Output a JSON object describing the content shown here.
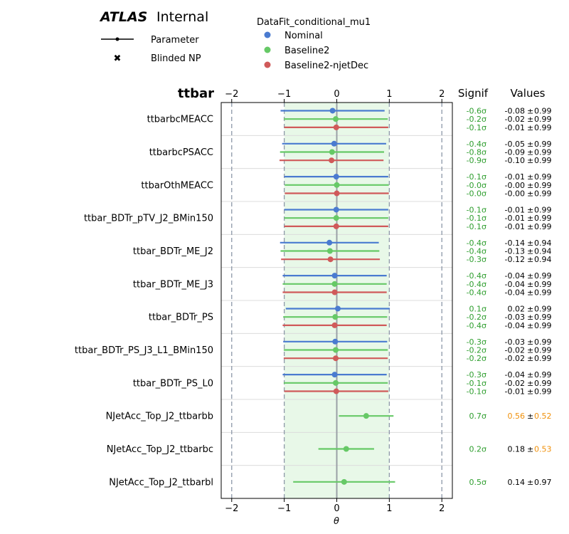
{
  "header": {
    "experiment": "ATLAS",
    "status": "Internal",
    "legend_title": "DataFit_conditional_mu1",
    "key_parameter": "Parameter",
    "key_blinded": "Blinded NP",
    "panel_title": "ttbar",
    "signif_header": "Signif",
    "values_header": "Values"
  },
  "colors": {
    "Nominal": "#4a7bd0",
    "Baseline2": "#66c966",
    "Baseline2-njetDec": "#d05a5a",
    "band": "#e8f8e8",
    "signif_text": "#2e9e2e",
    "highlight": "#f0900a"
  },
  "chart_data": {
    "type": "scatter",
    "subtype": "pull-plot",
    "xlabel": "θ",
    "xlim": [
      -2.2,
      2.2
    ],
    "x_ticks": [
      -2,
      -1,
      0,
      1,
      2
    ],
    "x_tick_labels": [
      "−2",
      "−1",
      "0",
      "1",
      "2"
    ],
    "band": [
      -1,
      1
    ],
    "legend_position": "top",
    "series": [
      {
        "name": "Nominal"
      },
      {
        "name": "Baseline2"
      },
      {
        "name": "Baseline2-njetDec"
      }
    ],
    "parameters": [
      {
        "name": "ttbarbcMEACC",
        "entries": [
          {
            "series": "Nominal",
            "value": -0.08,
            "err": 0.99,
            "signif": "-0.6σ",
            "value_text": "-0.08",
            "err_text": "0.99"
          },
          {
            "series": "Baseline2",
            "value": -0.02,
            "err": 0.99,
            "signif": "-0.2σ",
            "value_text": "-0.02",
            "err_text": "0.99"
          },
          {
            "series": "Baseline2-njetDec",
            "value": -0.01,
            "err": 0.99,
            "signif": "-0.1σ",
            "value_text": "-0.01",
            "err_text": "0.99"
          }
        ]
      },
      {
        "name": "ttbarbcPSACC",
        "entries": [
          {
            "series": "Nominal",
            "value": -0.05,
            "err": 0.99,
            "signif": "-0.4σ",
            "value_text": "-0.05",
            "err_text": "0.99"
          },
          {
            "series": "Baseline2",
            "value": -0.09,
            "err": 0.99,
            "signif": "-0.8σ",
            "value_text": "-0.09",
            "err_text": "0.99"
          },
          {
            "series": "Baseline2-njetDec",
            "value": -0.1,
            "err": 0.99,
            "signif": "-0.9σ",
            "value_text": "-0.10",
            "err_text": "0.99"
          }
        ]
      },
      {
        "name": "ttbarOthMEACC",
        "entries": [
          {
            "series": "Nominal",
            "value": -0.01,
            "err": 0.99,
            "signif": "-0.1σ",
            "value_text": "-0.01",
            "err_text": "0.99"
          },
          {
            "series": "Baseline2",
            "value": -0.0,
            "err": 0.99,
            "signif": "-0.0σ",
            "value_text": "-0.00",
            "err_text": "0.99"
          },
          {
            "series": "Baseline2-njetDec",
            "value": -0.0,
            "err": 0.99,
            "signif": "-0.0σ",
            "value_text": "-0.00",
            "err_text": "0.99"
          }
        ]
      },
      {
        "name": "ttbar_BDTr_pTV_J2_BMin150",
        "entries": [
          {
            "series": "Nominal",
            "value": -0.01,
            "err": 0.99,
            "signif": "-0.1σ",
            "value_text": "-0.01",
            "err_text": "0.99"
          },
          {
            "series": "Baseline2",
            "value": -0.01,
            "err": 0.99,
            "signif": "-0.1σ",
            "value_text": "-0.01",
            "err_text": "0.99"
          },
          {
            "series": "Baseline2-njetDec",
            "value": -0.01,
            "err": 0.99,
            "signif": "-0.1σ",
            "value_text": "-0.01",
            "err_text": "0.99"
          }
        ]
      },
      {
        "name": "ttbar_BDTr_ME_J2",
        "entries": [
          {
            "series": "Nominal",
            "value": -0.14,
            "err": 0.94,
            "signif": "-0.4σ",
            "value_text": "-0.14",
            "err_text": "0.94"
          },
          {
            "series": "Baseline2",
            "value": -0.13,
            "err": 0.94,
            "signif": "-0.4σ",
            "value_text": "-0.13",
            "err_text": "0.94"
          },
          {
            "series": "Baseline2-njetDec",
            "value": -0.12,
            "err": 0.94,
            "signif": "-0.3σ",
            "value_text": "-0.12",
            "err_text": "0.94"
          }
        ]
      },
      {
        "name": "ttbar_BDTr_ME_J3",
        "entries": [
          {
            "series": "Nominal",
            "value": -0.04,
            "err": 0.99,
            "signif": "-0.4σ",
            "value_text": "-0.04",
            "err_text": "0.99"
          },
          {
            "series": "Baseline2",
            "value": -0.04,
            "err": 0.99,
            "signif": "-0.4σ",
            "value_text": "-0.04",
            "err_text": "0.99"
          },
          {
            "series": "Baseline2-njetDec",
            "value": -0.04,
            "err": 0.99,
            "signif": "-0.4σ",
            "value_text": "-0.04",
            "err_text": "0.99"
          }
        ]
      },
      {
        "name": "ttbar_BDTr_PS",
        "entries": [
          {
            "series": "Nominal",
            "value": 0.02,
            "err": 0.99,
            "signif": "0.1σ",
            "value_text": "0.02",
            "err_text": "0.99"
          },
          {
            "series": "Baseline2",
            "value": -0.03,
            "err": 0.99,
            "signif": "-0.2σ",
            "value_text": "-0.03",
            "err_text": "0.99"
          },
          {
            "series": "Baseline2-njetDec",
            "value": -0.04,
            "err": 0.99,
            "signif": "-0.4σ",
            "value_text": "-0.04",
            "err_text": "0.99"
          }
        ]
      },
      {
        "name": "ttbar_BDTr_PS_J3_L1_BMin150",
        "entries": [
          {
            "series": "Nominal",
            "value": -0.03,
            "err": 0.99,
            "signif": "-0.3σ",
            "value_text": "-0.03",
            "err_text": "0.99"
          },
          {
            "series": "Baseline2",
            "value": -0.02,
            "err": 0.99,
            "signif": "-0.2σ",
            "value_text": "-0.02",
            "err_text": "0.99"
          },
          {
            "series": "Baseline2-njetDec",
            "value": -0.02,
            "err": 0.99,
            "signif": "-0.2σ",
            "value_text": "-0.02",
            "err_text": "0.99"
          }
        ]
      },
      {
        "name": "ttbar_BDTr_PS_L0",
        "entries": [
          {
            "series": "Nominal",
            "value": -0.04,
            "err": 0.99,
            "signif": "-0.3σ",
            "value_text": "-0.04",
            "err_text": "0.99"
          },
          {
            "series": "Baseline2",
            "value": -0.02,
            "err": 0.99,
            "signif": "-0.1σ",
            "value_text": "-0.02",
            "err_text": "0.99"
          },
          {
            "series": "Baseline2-njetDec",
            "value": -0.01,
            "err": 0.99,
            "signif": "-0.1σ",
            "value_text": "-0.01",
            "err_text": "0.99"
          }
        ]
      },
      {
        "name": "NJetAcc_Top_J2_ttbarbb",
        "entries": [
          {
            "series": "Baseline2",
            "value": 0.56,
            "err": 0.52,
            "signif": "0.7σ",
            "value_text": "0.56",
            "err_text": "0.52",
            "value_highlight": true,
            "err_highlight": true
          }
        ]
      },
      {
        "name": "NJetAcc_Top_J2_ttbarbc",
        "entries": [
          {
            "series": "Baseline2",
            "value": 0.18,
            "err": 0.53,
            "signif": "0.2σ",
            "value_text": "0.18",
            "err_text": "0.53",
            "err_highlight": true
          }
        ]
      },
      {
        "name": "NJetAcc_Top_J2_ttbarbl",
        "entries": [
          {
            "series": "Baseline2",
            "value": 0.14,
            "err": 0.97,
            "signif": "0.5σ",
            "value_text": "0.14",
            "err_text": "0.97"
          }
        ]
      }
    ]
  }
}
